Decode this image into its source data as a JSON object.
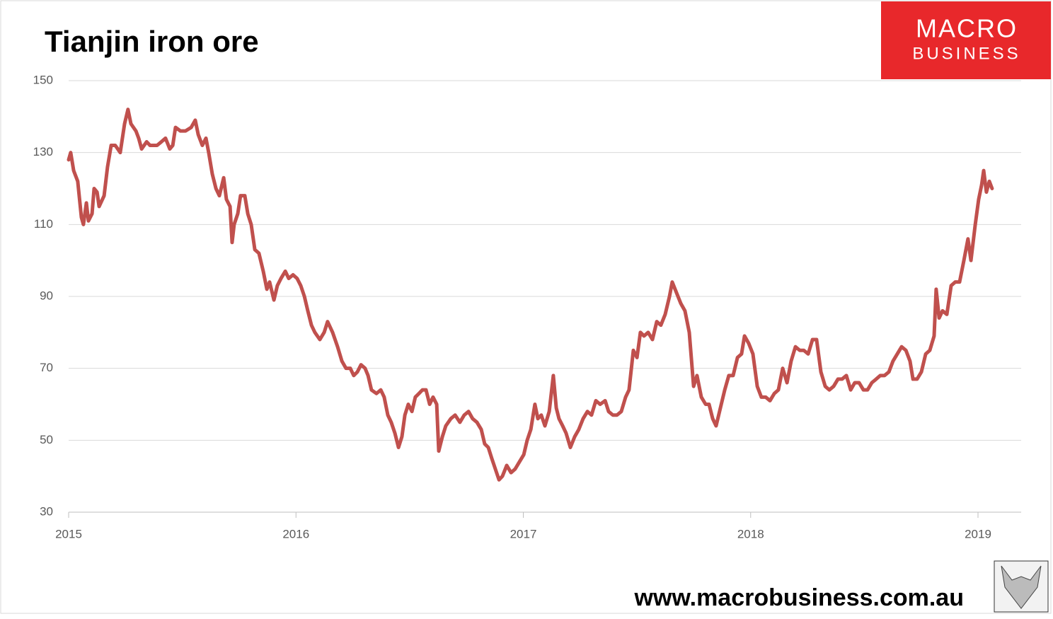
{
  "chart_data": {
    "type": "line",
    "title": "Tianjin iron ore",
    "logo_text": [
      "MACRO",
      "BUSINESS"
    ],
    "source": "www.macrobusiness.com.au",
    "xlim": [
      2015,
      2019.19
    ],
    "xticks": [
      2015,
      2016,
      2017,
      2018,
      2019
    ],
    "ylim": [
      30,
      150
    ],
    "yticks": [
      30,
      50,
      70,
      90,
      110,
      130,
      150
    ],
    "grid": true,
    "x": [
      2015.0,
      2015.009,
      2015.022,
      2015.04,
      2015.056,
      2015.065,
      2015.078,
      2015.087,
      2015.103,
      2015.112,
      2015.125,
      2015.134,
      2015.156,
      2015.171,
      2015.187,
      2015.205,
      2015.227,
      2015.246,
      2015.261,
      2015.274,
      2015.296,
      2015.308,
      2015.321,
      2015.343,
      2015.358,
      2015.389,
      2015.408,
      2015.426,
      2015.445,
      2015.458,
      2015.47,
      2015.492,
      2015.514,
      2015.539,
      2015.557,
      2015.57,
      2015.588,
      2015.604,
      2015.616,
      2015.632,
      2015.648,
      2015.663,
      2015.682,
      2015.694,
      2015.71,
      2015.719,
      2015.728,
      2015.744,
      2015.756,
      2015.775,
      2015.788,
      2015.803,
      2015.819,
      2015.837,
      2015.856,
      2015.872,
      2015.884,
      2015.903,
      2015.918,
      2015.934,
      2015.953,
      2015.968,
      2015.987,
      2016.005,
      2016.021,
      2016.037,
      2016.052,
      2016.068,
      2016.083,
      2016.105,
      2016.124,
      2016.139,
      2016.161,
      2016.183,
      2016.202,
      2016.22,
      2016.239,
      2016.254,
      2016.27,
      2016.286,
      2016.304,
      2016.317,
      2016.332,
      2016.354,
      2016.373,
      2016.388,
      2016.404,
      2016.419,
      2016.435,
      2016.451,
      2016.466,
      2016.479,
      2016.494,
      2016.51,
      2016.525,
      2016.541,
      2016.556,
      2016.572,
      2016.588,
      2016.603,
      2016.619,
      2016.628,
      2016.644,
      2016.659,
      2016.681,
      2016.7,
      2016.721,
      2016.74,
      2016.759,
      2016.777,
      2016.796,
      2016.815,
      2016.83,
      2016.846,
      2016.861,
      2016.877,
      2016.893,
      2016.908,
      2016.927,
      2016.946,
      2016.964,
      2016.983,
      2017.002,
      2017.017,
      2017.033,
      2017.051,
      2017.064,
      2017.079,
      2017.095,
      2017.114,
      2017.132,
      2017.145,
      2017.157,
      2017.173,
      2017.188,
      2017.207,
      2017.226,
      2017.244,
      2017.263,
      2017.282,
      2017.3,
      2017.319,
      2017.338,
      2017.36,
      2017.375,
      2017.394,
      2017.412,
      2017.431,
      2017.45,
      2017.465,
      2017.484,
      2017.5,
      2017.515,
      2017.531,
      2017.549,
      2017.568,
      2017.587,
      2017.605,
      2017.624,
      2017.643,
      2017.655,
      2017.674,
      2017.693,
      2017.711,
      2017.73,
      2017.749,
      2017.764,
      2017.783,
      2017.802,
      2017.817,
      2017.833,
      2017.848,
      2017.867,
      2017.886,
      2017.904,
      2017.923,
      2017.942,
      2017.96,
      2017.973,
      2017.991,
      2018.01,
      2018.029,
      2018.047,
      2018.066,
      2018.085,
      2018.104,
      2018.122,
      2018.141,
      2018.16,
      2018.178,
      2018.197,
      2018.216,
      2018.234,
      2018.253,
      2018.272,
      2018.29,
      2018.309,
      2018.328,
      2018.346,
      2018.365,
      2018.384,
      2018.402,
      2018.421,
      2018.44,
      2018.458,
      2018.477,
      2018.496,
      2018.514,
      2018.533,
      2018.552,
      2018.57,
      2018.589,
      2018.608,
      2018.626,
      2018.645,
      2018.664,
      2018.683,
      2018.701,
      2018.714,
      2018.732,
      2018.751,
      2018.77,
      2018.788,
      2018.807,
      2018.816,
      2018.829,
      2018.844,
      2018.863,
      2018.882,
      2018.9,
      2018.919,
      2018.938,
      2018.956,
      2018.969,
      2018.988,
      2019.003,
      2019.016,
      2019.025,
      2019.037,
      2019.05,
      2019.062
    ],
    "series": [
      {
        "name": "Tianjin iron ore",
        "color": "#c0504d",
        "values": [
          128,
          130,
          125,
          122,
          112,
          110,
          116,
          111,
          113,
          120,
          119,
          115,
          118,
          126,
          132,
          132,
          130,
          138,
          142,
          138,
          136,
          134,
          131,
          133,
          132,
          132,
          133,
          134,
          131,
          132,
          137,
          136,
          136,
          137,
          139,
          135,
          132,
          134,
          130,
          124,
          120,
          118,
          123,
          117,
          115,
          105,
          110,
          113,
          118,
          118,
          113,
          110,
          103,
          102,
          97,
          92,
          94,
          89,
          93,
          95,
          97,
          95,
          96,
          95,
          93,
          90,
          86,
          82,
          80,
          78,
          80,
          83,
          80,
          76,
          72,
          70,
          70,
          68,
          69,
          71,
          70,
          68,
          64,
          63,
          64,
          62,
          57,
          55,
          52,
          48,
          51,
          57,
          60,
          58,
          62,
          63,
          64,
          64,
          60,
          62,
          60,
          47,
          51,
          54,
          56,
          57,
          55,
          57,
          58,
          56,
          55,
          53,
          49,
          48,
          45,
          42,
          39,
          40,
          43,
          41,
          42,
          44,
          46,
          50,
          53,
          60,
          56,
          57,
          54,
          58,
          68,
          59,
          56,
          54,
          52,
          48,
          51,
          53,
          56,
          58,
          57,
          61,
          60,
          61,
          58,
          57,
          57,
          58,
          62,
          64,
          75,
          73,
          80,
          79,
          80,
          78,
          83,
          82,
          85,
          90,
          94,
          91,
          88,
          86,
          80,
          65,
          68,
          62,
          60,
          60,
          56,
          54,
          59,
          64,
          68,
          68,
          73,
          74,
          79,
          77,
          74,
          65,
          62,
          62,
          61,
          63,
          64,
          70,
          66,
          72,
          76,
          75,
          75,
          74,
          78,
          78,
          69,
          65,
          64,
          65,
          67,
          67,
          68,
          64,
          66,
          66,
          64,
          64,
          66,
          67,
          68,
          68,
          69,
          72,
          74,
          76,
          75,
          72,
          67,
          67,
          69,
          74,
          75,
          79,
          92,
          84,
          86,
          85,
          93,
          94,
          94,
          100,
          106,
          100,
          110,
          117,
          121,
          125,
          119,
          122,
          120
        ]
      }
    ]
  }
}
